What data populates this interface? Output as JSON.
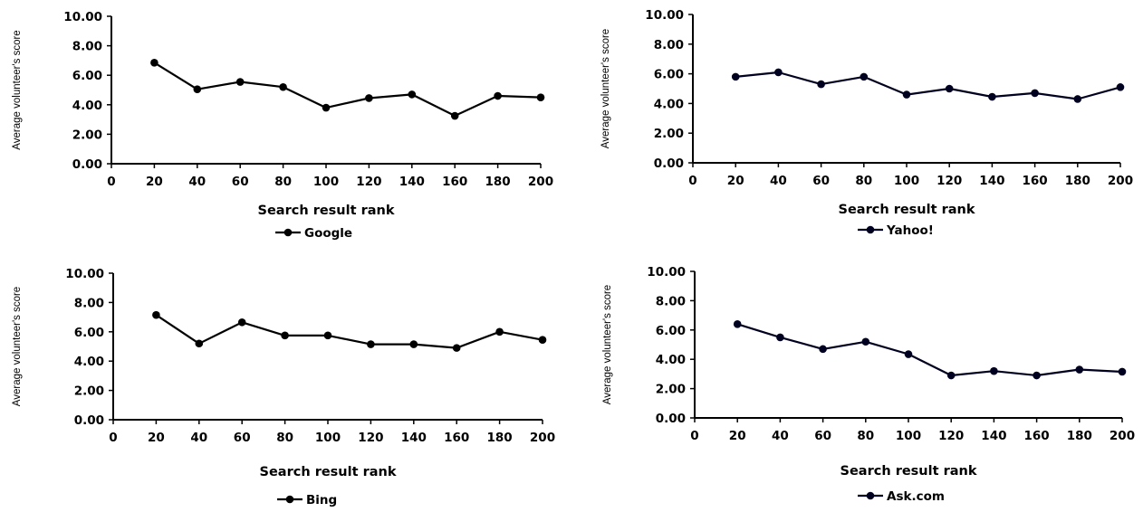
{
  "chart_data": [
    {
      "type": "line",
      "xlabel": "Search result rank",
      "ylabel": "Average volunteer's score",
      "xlim": [
        0,
        200
      ],
      "ylim": [
        0,
        10
      ],
      "xticks": [
        "0",
        "20",
        "40",
        "60",
        "80",
        "100",
        "120",
        "140",
        "160",
        "180",
        "200"
      ],
      "yticks": [
        "0.00",
        "2.00",
        "4.00",
        "6.00",
        "8.00",
        "10.00"
      ],
      "legend": "bottom",
      "grid": false,
      "series": [
        {
          "name": "Google",
          "color": "#000000",
          "x": [
            20,
            40,
            60,
            80,
            100,
            120,
            140,
            160,
            180,
            200
          ],
          "values": [
            6.85,
            5.05,
            5.55,
            5.2,
            3.8,
            4.45,
            4.7,
            3.25,
            4.6,
            4.5
          ]
        }
      ]
    },
    {
      "type": "line",
      "xlabel": "Search result rank",
      "ylabel": "Average volunteer's score",
      "xlim": [
        0,
        200
      ],
      "ylim": [
        0,
        10
      ],
      "xticks": [
        "0",
        "20",
        "40",
        "60",
        "80",
        "100",
        "120",
        "140",
        "160",
        "180",
        "200"
      ],
      "yticks": [
        "0.00",
        "2.00",
        "4.00",
        "6.00",
        "8.00",
        "10.00"
      ],
      "legend": "bottom",
      "grid": false,
      "series": [
        {
          "name": "Yahoo!",
          "color": "#000020",
          "x": [
            20,
            40,
            60,
            80,
            100,
            120,
            140,
            160,
            180,
            200
          ],
          "values": [
            5.8,
            6.1,
            5.3,
            5.8,
            4.6,
            5.0,
            4.45,
            4.7,
            4.3,
            5.1
          ]
        }
      ]
    },
    {
      "type": "line",
      "xlabel": "Search result rank",
      "ylabel": "Average volunteer's score",
      "xlim": [
        0,
        200
      ],
      "ylim": [
        0,
        10
      ],
      "xticks": [
        "0",
        "20",
        "40",
        "60",
        "80",
        "100",
        "120",
        "140",
        "160",
        "180",
        "200"
      ],
      "yticks": [
        "0.00",
        "2.00",
        "4.00",
        "6.00",
        "8.00",
        "10.00"
      ],
      "legend": "bottom",
      "grid": false,
      "series": [
        {
          "name": "Bing",
          "color": "#000000",
          "x": [
            20,
            40,
            60,
            80,
            100,
            120,
            140,
            160,
            180,
            200
          ],
          "values": [
            7.15,
            5.2,
            6.65,
            5.75,
            5.75,
            5.15,
            5.15,
            4.9,
            6.0,
            5.45
          ]
        }
      ]
    },
    {
      "type": "line",
      "xlabel": "Search result rank",
      "ylabel": "Average volunteer's score",
      "xlim": [
        0,
        200
      ],
      "ylim": [
        0,
        10
      ],
      "xticks": [
        "0",
        "20",
        "40",
        "60",
        "80",
        "100",
        "120",
        "140",
        "160",
        "180",
        "200"
      ],
      "yticks": [
        "0.00",
        "2.00",
        "4.00",
        "6.00",
        "8.00",
        "10.00"
      ],
      "legend": "bottom",
      "grid": false,
      "series": [
        {
          "name": "Ask.com",
          "color": "#000020",
          "x": [
            20,
            40,
            60,
            80,
            100,
            120,
            140,
            160,
            180,
            200
          ],
          "values": [
            6.4,
            5.5,
            4.7,
            5.2,
            4.35,
            2.9,
            3.2,
            2.9,
            3.3,
            3.15
          ]
        }
      ]
    }
  ]
}
